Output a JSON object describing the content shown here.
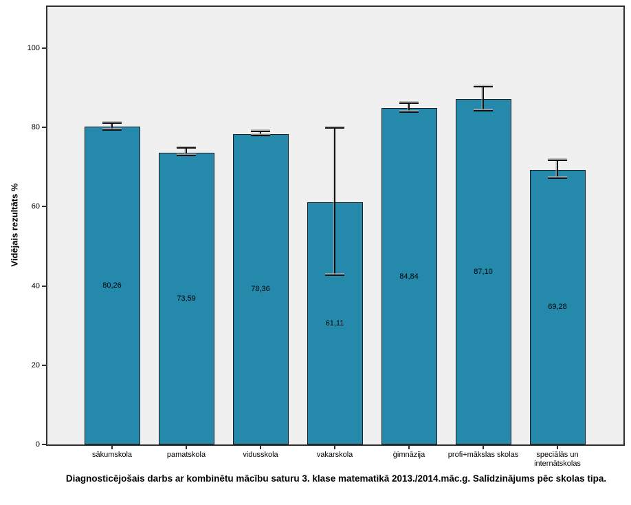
{
  "figure": {
    "background": "#ffffff"
  },
  "chart_data": {
    "type": "bar",
    "title": "Diagnosticējošais darbs ar kombinētu mācību saturu 3. klase matematikā 2013./2014.māc.g. Salīdzinājums pēc skolas tipa.",
    "xlabel": "",
    "ylabel": "Vidējais rezultāts %",
    "categories": [
      "sākumskola",
      "pamatskola",
      "vidusskola",
      "vakarskola",
      "ģimnāzija",
      "profi+mākslas skolas",
      "speciālās un internātskolas"
    ],
    "values": [
      80.26,
      73.59,
      78.36,
      61.11,
      84.84,
      87.1,
      69.28
    ],
    "value_labels": [
      "80,26",
      "73,59",
      "78,36",
      "61,11",
      "84,84",
      "87,10",
      "69,28"
    ],
    "error_bars": [
      {
        "low": 79.3,
        "high": 81.1
      },
      {
        "low": 72.9,
        "high": 74.8
      },
      {
        "low": 78.0,
        "high": 79.0
      },
      {
        "low": 42.7,
        "high": 79.9
      },
      {
        "low": 83.9,
        "high": 86.1
      },
      {
        "low": 84.2,
        "high": 90.2
      },
      {
        "low": 67.2,
        "high": 71.7
      }
    ],
    "y_ticks": [
      0,
      20,
      40,
      60,
      80,
      100
    ],
    "y_tick_labels": [
      "0",
      "20",
      "40",
      "60",
      "80",
      "100"
    ],
    "ylim": [
      0,
      111
    ],
    "grid": false,
    "legend": null,
    "value_label_position": "center-of-bar",
    "bar_color": "#2589AC",
    "bar_border_color": "#1c1c1c",
    "plot_background": "#f0f0f0",
    "error_bar_color": "#111111"
  }
}
